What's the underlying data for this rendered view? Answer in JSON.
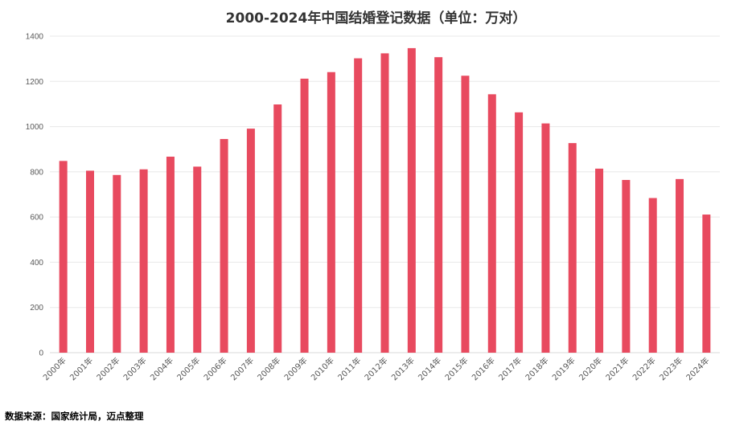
{
  "chart_data": {
    "type": "bar",
    "title": "2000-2024年中国结婚登记数据（单位：万对）",
    "categories": [
      "2000年",
      "2001年",
      "2002年",
      "2003年",
      "2004年",
      "2005年",
      "2006年",
      "2007年",
      "2008年",
      "2009年",
      "2010年",
      "2011年",
      "2012年",
      "2013年",
      "2014年",
      "2015年",
      "2016年",
      "2017年",
      "2018年",
      "2019年",
      "2020年",
      "2021年",
      "2022年",
      "2023年",
      "2024年"
    ],
    "values": [
      848,
      805,
      786,
      811,
      867,
      823,
      945,
      991,
      1098,
      1212,
      1241,
      1302,
      1324,
      1347,
      1307,
      1225,
      1143,
      1063,
      1014,
      927,
      814,
      764,
      684,
      768,
      611
    ],
    "ylim": [
      0,
      1400
    ],
    "yticks": [
      0,
      200,
      400,
      600,
      800,
      1000,
      1200,
      1400
    ],
    "grid": true,
    "bar_color": "#E84A5F",
    "xlabel": "",
    "ylabel": ""
  },
  "source_text": "数据来源：国家统计局，迈点整理"
}
